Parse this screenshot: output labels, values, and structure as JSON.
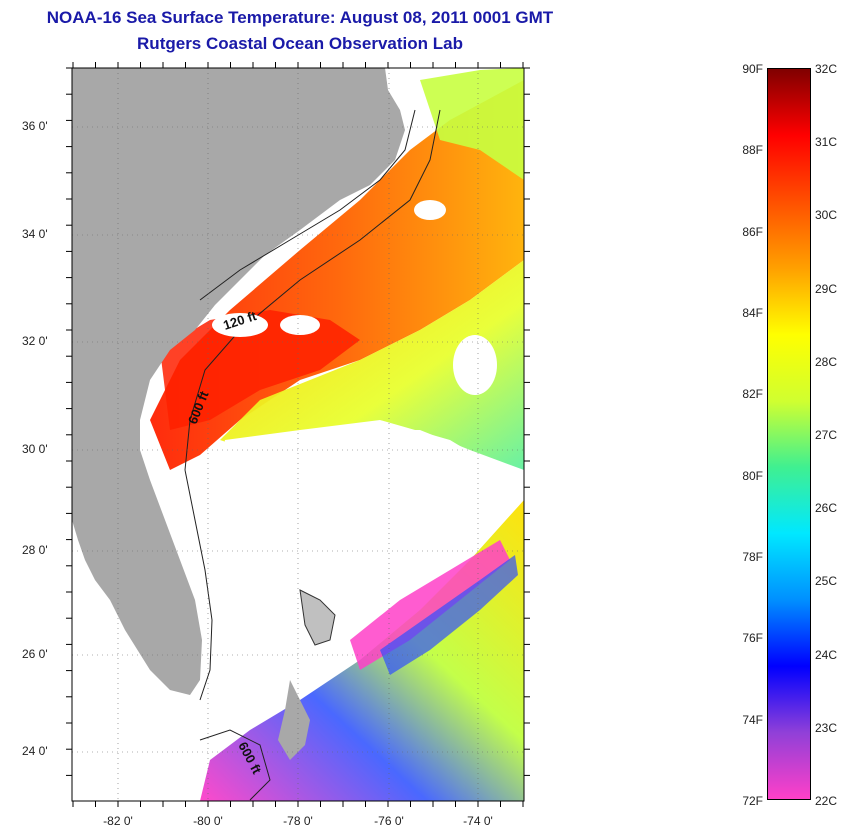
{
  "title": {
    "line1": "NOAA-16 Sea Surface Temperature:  August 08, 2011 0001 GMT",
    "line2": "Rutgers Coastal Ocean Observation Lab"
  },
  "lat_labels": [
    "36 0'",
    "34 0'",
    "32 0'",
    "30 0'",
    "28 0'",
    "26 0'",
    "24 0'"
  ],
  "lon_labels": [
    "-82 0'",
    "-80 0'",
    "-78 0'",
    "-76 0'",
    "-74 0'"
  ],
  "contour_labels": {
    "shelf_120": "120 ft",
    "shelf_600": "600 ft",
    "keys_600": "600 ft"
  },
  "colorbar": {
    "fahrenheit": [
      "90F",
      "88F",
      "86F",
      "84F",
      "82F",
      "80F",
      "78F",
      "76F",
      "74F",
      "72F"
    ],
    "celsius": [
      "32C",
      "31C",
      "30C",
      "29C",
      "28C",
      "27C",
      "26C",
      "25C",
      "24C",
      "23C",
      "22C"
    ],
    "colors": [
      "#ff40c8",
      "#9040d8",
      "#0000ff",
      "#0090ff",
      "#00e8ff",
      "#40f090",
      "#d0ff30",
      "#ffff00",
      "#ffa000",
      "#ff5000",
      "#ff0000",
      "#800000"
    ]
  },
  "map": {
    "land_color": "#a8a8a8",
    "extent": {
      "lon_min": -83,
      "lon_max": -73,
      "lat_min": 23,
      "lat_max": 37
    }
  }
}
